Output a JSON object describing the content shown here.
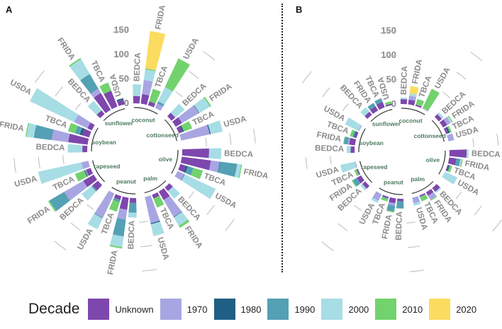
{
  "panels": [
    {
      "label": "A"
    },
    {
      "label": "B"
    }
  ],
  "colors": {
    "Unknown": "#7e47ad",
    "1970": "#a8a6e2",
    "1980": "#1f5f85",
    "1990": "#54a0b4",
    "2000": "#a7dde5",
    "2010": "#72d26d",
    "2020": "#fbdc5f"
  },
  "legend": {
    "title": "Decade",
    "items": [
      "Unknown",
      "1970",
      "1980",
      "1990",
      "2000",
      "2010",
      "2020"
    ]
  },
  "chart_data": [
    {
      "type": "bar",
      "subtype": "circular-stacked",
      "panel": "A",
      "axis_ticks": [
        0,
        50,
        100,
        150
      ],
      "decades": [
        "Unknown",
        "1970",
        "1980",
        "1990",
        "2000",
        "2010",
        "2020"
      ],
      "sources": [
        "BEDCA",
        "FRIDA",
        "TBCA",
        "USDA"
      ],
      "groups": [
        {
          "name": "coconut",
          "values": [
            [
              15,
              0,
              0,
              0,
              24,
              0,
              0
            ],
            [
              20,
              29,
              0,
              0,
              22,
              2,
              77
            ],
            [
              8,
              0,
              0,
              0,
              0,
              27,
              0
            ],
            [
              0,
              10,
              0,
              5,
              32,
              65,
              0
            ]
          ]
        },
        {
          "name": "cottonseed",
          "values": [
            [
              10,
              0,
              0,
              0,
              25,
              0,
              0
            ],
            [
              15,
              40,
              1,
              0,
              25,
              3,
              0
            ],
            [
              8,
              0,
              3,
              0,
              0,
              18,
              0
            ],
            [
              0,
              60,
              2,
              0,
              25,
              0,
              0
            ]
          ]
        },
        {
          "name": "olive",
          "values": [
            [
              55,
              0,
              0,
              0,
              25,
              0,
              0
            ],
            [
              60,
              18,
              1,
              35,
              8,
              2,
              0
            ],
            [
              12,
              0,
              4,
              12,
              0,
              20,
              0
            ],
            [
              0,
              15,
              1,
              0,
              70,
              0,
              0
            ]
          ]
        },
        {
          "name": "palm",
          "values": [
            [
              10,
              0,
              0,
              0,
              20,
              0,
              0
            ],
            [
              20,
              40,
              1,
              0,
              20,
              5,
              0
            ],
            [
              8,
              0,
              0,
              0,
              0,
              20,
              0
            ],
            [
              0,
              55,
              2,
              0,
              25,
              0,
              0
            ]
          ]
        },
        {
          "name": "peanut",
          "values": [
            [
              10,
              0,
              0,
              20,
              10,
              0,
              0
            ],
            [
              25,
              20,
              0,
              35,
              22,
              3,
              0
            ],
            [
              8,
              0,
              0,
              5,
              0,
              20,
              0
            ],
            [
              0,
              55,
              1,
              0,
              25,
              0,
              0
            ]
          ]
        },
        {
          "name": "rapeseed",
          "values": [
            [
              15,
              0,
              0,
              3,
              25,
              0,
              0
            ],
            [
              25,
              45,
              0,
              35,
              0,
              3,
              0
            ],
            [
              10,
              2,
              2,
              0,
              0,
              20,
              0
            ],
            [
              0,
              15,
              0,
              0,
              90,
              0,
              0
            ]
          ]
        },
        {
          "name": "soybean",
          "values": [
            [
              10,
              0,
              0,
              0,
              30,
              0,
              0
            ],
            [
              40,
              35,
              1,
              35,
              15,
              2,
              0
            ],
            [
              15,
              0,
              5,
              10,
              0,
              15,
              0
            ],
            [
              10,
              30,
              0,
              0,
              100,
              0,
              0
            ]
          ]
        },
        {
          "name": "sunflower",
          "values": [
            [
              10,
              0,
              0,
              0,
              25,
              0,
              0
            ],
            [
              40,
              10,
              0,
              35,
              35,
              3,
              0
            ],
            [
              35,
              0,
              0,
              0,
              0,
              18,
              0
            ],
            [
              10,
              0,
              3,
              0,
              0,
              0,
              0
            ]
          ]
        }
      ]
    },
    {
      "type": "bar",
      "subtype": "circular-stacked",
      "panel": "B",
      "axis_ticks": [
        0,
        50,
        100,
        150
      ],
      "decades": [
        "Unknown",
        "1970",
        "1980",
        "1990",
        "2000",
        "2010",
        "2020"
      ],
      "sources": [
        "BEDCA",
        "FRIDA",
        "TBCA",
        "USDA"
      ],
      "groups": [
        {
          "name": "coconut",
          "values": [
            [
              10,
              0,
              0,
              0,
              3,
              0,
              0
            ],
            [
              10,
              8,
              0,
              0,
              5,
              0,
              15
            ],
            [
              3,
              0,
              0,
              0,
              0,
              12,
              0
            ],
            [
              0,
              2,
              0,
              0,
              0,
              43,
              0
            ]
          ]
        },
        {
          "name": "cottonseed",
          "values": [
            [
              8,
              0,
              0,
              0,
              5,
              0,
              0
            ],
            [
              10,
              8,
              0,
              0,
              3,
              2,
              0
            ],
            [
              5,
              0,
              3,
              0,
              0,
              4,
              0
            ],
            [
              0,
              12,
              0,
              0,
              0,
              0,
              0
            ]
          ]
        },
        {
          "name": "olive",
          "values": [
            [
              35,
              0,
              0,
              0,
              4,
              0,
              0
            ],
            [
              15,
              0,
              0,
              8,
              3,
              2,
              0
            ],
            [
              3,
              0,
              2,
              0,
              0,
              5,
              0
            ],
            [
              0,
              0,
              0,
              0,
              28,
              0,
              0
            ]
          ]
        },
        {
          "name": "palm",
          "values": [
            [
              10,
              0,
              0,
              0,
              3,
              0,
              0
            ],
            [
              8,
              10,
              0,
              0,
              0,
              2,
              0
            ],
            [
              3,
              0,
              0,
              0,
              0,
              10,
              0
            ],
            [
              0,
              12,
              0,
              0,
              5,
              0,
              0
            ]
          ]
        },
        {
          "name": "peanut",
          "values": [
            [
              5,
              0,
              0,
              15,
              0,
              0,
              0
            ],
            [
              10,
              5,
              0,
              12,
              0,
              2,
              0
            ],
            [
              3,
              0,
              0,
              2,
              0,
              5,
              0
            ],
            [
              0,
              15,
              0,
              0,
              5,
              0,
              0
            ]
          ]
        },
        {
          "name": "rapeseed",
          "values": [
            [
              8,
              0,
              0,
              0,
              5,
              0,
              0
            ],
            [
              10,
              0,
              0,
              10,
              0,
              2,
              0
            ],
            [
              3,
              0,
              0,
              0,
              0,
              5,
              0
            ],
            [
              0,
              2,
              0,
              0,
              30,
              0,
              0
            ]
          ]
        },
        {
          "name": "soybean",
          "values": [
            [
              8,
              0,
              0,
              0,
              8,
              0,
              0
            ],
            [
              12,
              3,
              0,
              8,
              0,
              1,
              0
            ],
            [
              4,
              0,
              2,
              3,
              0,
              5,
              0
            ],
            [
              0,
              2,
              0,
              0,
              30,
              0,
              0
            ]
          ]
        },
        {
          "name": "sunflower",
          "values": [
            [
              8,
              0,
              0,
              0,
              12,
              0,
              0
            ],
            [
              10,
              0,
              0,
              8,
              0,
              0,
              0
            ],
            [
              12,
              0,
              0,
              8,
              0,
              0,
              0
            ],
            [
              3,
              0,
              0,
              0,
              0,
              5,
              0
            ]
          ]
        }
      ]
    }
  ]
}
